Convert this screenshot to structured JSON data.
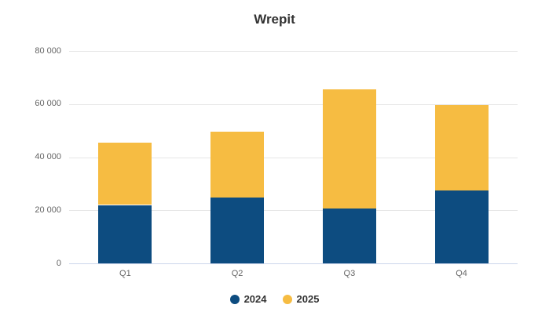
{
  "title": "Wrepit",
  "colors": {
    "series_2024": "#0d4c80",
    "series_2025": "#f6bc42",
    "gridline": "#e6e6e6",
    "axis_line": "#ccd6eb",
    "axis_label": "#666666",
    "title_text": "#333333",
    "legend_text": "#333333",
    "background": "#ffffff"
  },
  "legend": {
    "items": [
      {
        "label": "2024",
        "color": "#0d4c80"
      },
      {
        "label": "2025",
        "color": "#f6bc42"
      }
    ],
    "position": "bottom"
  },
  "chart_data": {
    "type": "bar",
    "stacked": true,
    "title": "Wrepit",
    "xlabel": "",
    "ylabel": "",
    "categories": [
      "Q1",
      "Q2",
      "Q3",
      "Q4"
    ],
    "series": [
      {
        "name": "2024",
        "color": "#0d4c80",
        "values": [
          22000,
          24700,
          20700,
          27400
        ]
      },
      {
        "name": "2025",
        "color": "#f6bc42",
        "values": [
          23500,
          25000,
          44800,
          32300
        ]
      }
    ],
    "stack_totals": [
      45500,
      49700,
      65500,
      59700
    ],
    "ylim": [
      0,
      80000
    ],
    "ytick_values": [
      80000,
      60000,
      40000,
      20000,
      0
    ],
    "ytick_labels": [
      "80 000",
      "60 000",
      "40 000",
      "20 000",
      "0"
    ],
    "grid": true,
    "legend_position": "bottom"
  }
}
